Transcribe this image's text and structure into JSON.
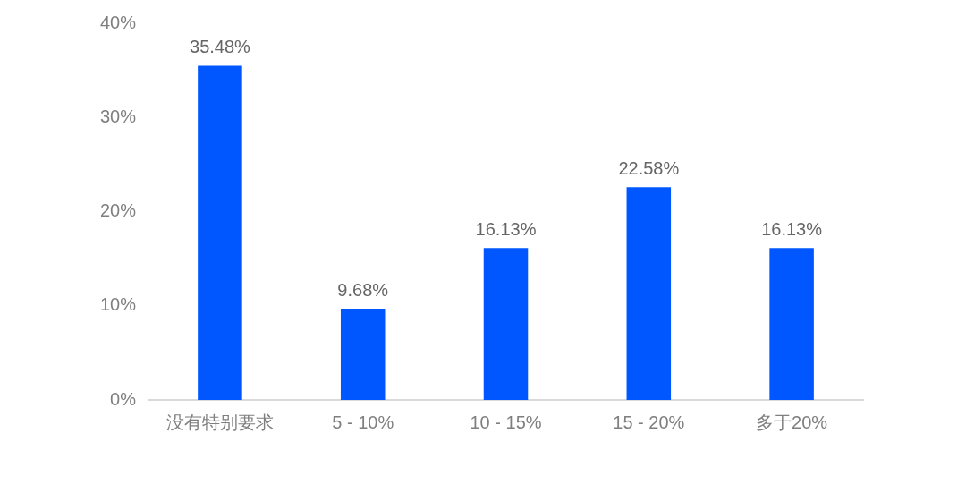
{
  "chart_data": {
    "type": "bar",
    "categories": [
      "没有特别要求",
      "5 - 10%",
      "10 - 15%",
      "15 - 20%",
      "多于20%"
    ],
    "values": [
      35.48,
      9.68,
      16.13,
      22.58,
      16.13
    ],
    "value_labels": [
      "35.48%",
      "9.68%",
      "16.13%",
      "22.58%",
      "16.13%"
    ],
    "color": "#0057ff",
    "ylim": [
      0,
      40
    ],
    "yticks": [
      {
        "value": 0,
        "label": "0%"
      },
      {
        "value": 10,
        "label": "10%"
      },
      {
        "value": 20,
        "label": "20%"
      },
      {
        "value": 30,
        "label": "30%"
      },
      {
        "value": 40,
        "label": "40%"
      }
    ]
  }
}
